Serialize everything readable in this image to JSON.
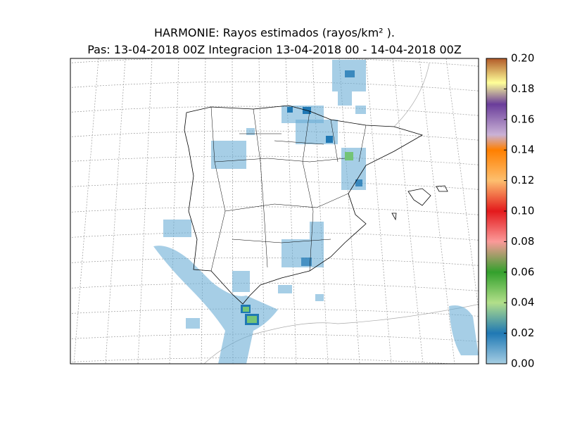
{
  "header": {
    "title": "HARMONIE: Rayos estimados  (rayos/km² ).",
    "subtitle": "Pas: 13-04-2018 00Z Integracion 13-04-2018 00 - 14-04-2018 00Z"
  },
  "colorbar": {
    "lim": [
      0,
      0.2
    ],
    "ticks": [
      {
        "value": 0,
        "label": "0.00"
      },
      0.02,
      0.04,
      0.06,
      0.08,
      {
        "value": 0.1,
        "label": "0.10"
      },
      0.12,
      0.14,
      0.16,
      0.18,
      {
        "value": 0.2,
        "label": "0.20"
      }
    ]
  }
}
